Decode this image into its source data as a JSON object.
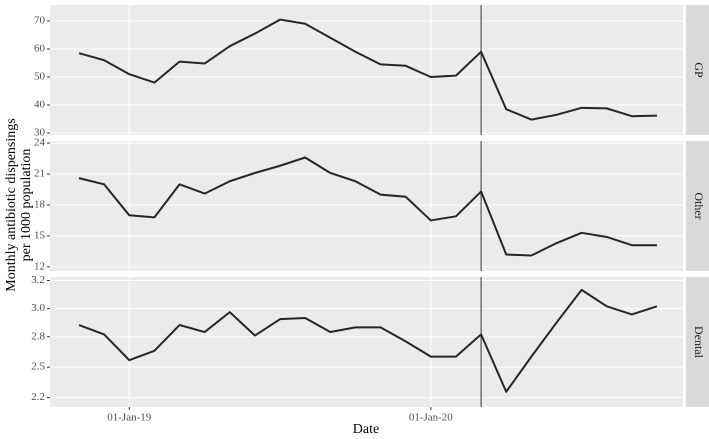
{
  "x_label": "Date",
  "y_label": [
    "Monthly antibiotic dispensings",
    "per 1000 population"
  ],
  "chart_data": [
    {
      "type": "line",
      "title": "GP",
      "color": "#262626",
      "vline": "01-Mar-20",
      "x": [
        "01-Nov-18",
        "01-Dec-18",
        "01-Jan-19",
        "01-Feb-19",
        "01-Mar-19",
        "01-Apr-19",
        "01-May-19",
        "01-Jun-19",
        "01-Jul-19",
        "01-Aug-19",
        "01-Sep-19",
        "01-Oct-19",
        "01-Nov-19",
        "01-Dec-19",
        "01-Jan-20",
        "01-Feb-20",
        "01-Mar-20",
        "01-Apr-20",
        "01-May-20",
        "01-Jun-20",
        "01-Jul-20",
        "01-Aug-20",
        "01-Sep-20",
        "01-Oct-20"
      ],
      "xticks": [
        "01-Jan-19",
        "01-Jan-20"
      ],
      "values": [
        58.5,
        56,
        51,
        48,
        55.5,
        54.8,
        61,
        65.5,
        70.5,
        69,
        64,
        59,
        54.5,
        54,
        50,
        50.5,
        59,
        38.5,
        34.8,
        36.5,
        39,
        38.8,
        36,
        36.2
      ],
      "ylim": [
        29.3,
        75.7
      ],
      "yticks": [
        30,
        40,
        50,
        60,
        70
      ]
    },
    {
      "type": "line",
      "title": "Other",
      "color": "#262626",
      "vline": "01-Mar-20",
      "x": [
        "01-Nov-18",
        "01-Dec-18",
        "01-Jan-19",
        "01-Feb-19",
        "01-Mar-19",
        "01-Apr-19",
        "01-May-19",
        "01-Jun-19",
        "01-Jul-19",
        "01-Aug-19",
        "01-Sep-19",
        "01-Oct-19",
        "01-Nov-19",
        "01-Dec-19",
        "01-Jan-20",
        "01-Feb-20",
        "01-Mar-20",
        "01-Apr-20",
        "01-May-20",
        "01-Jun-20",
        "01-Jul-20",
        "01-Aug-20",
        "01-Sep-20",
        "01-Oct-20"
      ],
      "xticks": [
        "01-Jan-19",
        "01-Jan-20"
      ],
      "values": [
        20.6,
        20.0,
        17.0,
        16.8,
        20.0,
        19.1,
        20.3,
        21.1,
        21.8,
        22.6,
        21.1,
        20.3,
        19.0,
        18.8,
        16.5,
        16.9,
        19.3,
        13.2,
        13.1,
        14.3,
        15.3,
        14.9,
        14.1,
        14.1
      ],
      "ylim": [
        11.6,
        24.2
      ],
      "yticks": [
        12,
        15,
        18,
        21,
        24
      ]
    },
    {
      "type": "line",
      "title": "Dental",
      "color": "#262626",
      "vline": "01-Mar-20",
      "x": [
        "01-Nov-18",
        "01-Dec-18",
        "01-Jan-19",
        "01-Feb-19",
        "01-Mar-19",
        "01-Apr-19",
        "01-May-19",
        "01-Jun-19",
        "01-Jul-19",
        "01-Aug-19",
        "01-Sep-19",
        "01-Oct-19",
        "01-Nov-19",
        "01-Dec-19",
        "01-Jan-20",
        "01-Feb-20",
        "01-Mar-20",
        "01-Apr-20",
        "01-May-20",
        "01-Jun-20",
        "01-Jul-20",
        "01-Aug-20",
        "01-Sep-20",
        "01-Oct-20"
      ],
      "xticks": [
        "01-Jan-19",
        "01-Jan-20"
      ],
      "values": [
        2.86,
        2.78,
        2.56,
        2.64,
        2.86,
        2.8,
        2.97,
        2.77,
        2.91,
        2.92,
        2.8,
        2.84,
        2.84,
        2.72,
        2.59,
        2.59,
        2.78,
        2.29,
        2.59,
        2.88,
        3.16,
        3.02,
        2.95,
        3.02
      ],
      "ylim": [
        2.16,
        3.27
      ],
      "yticks": [
        {
          "value": 3.24,
          "label": "3.2"
        },
        {
          "value": 3.0,
          "label": "3.0"
        },
        {
          "value": 2.76,
          "label": "2.8"
        },
        {
          "value": 2.5,
          "label": "2.5"
        },
        {
          "value": 2.24,
          "label": "2.2"
        }
      ]
    }
  ]
}
